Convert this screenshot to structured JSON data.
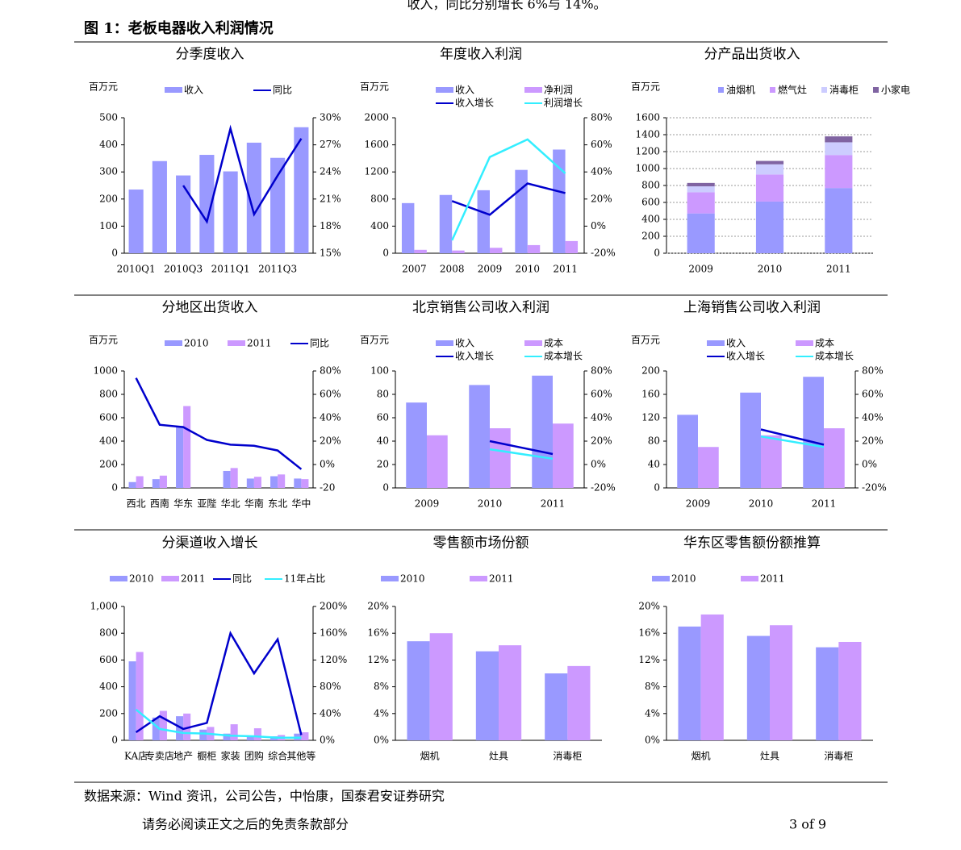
{
  "header_text": "收入，同比分别增长 6%与 14%。",
  "figure_title": "图 1：老板电器收入利润情况",
  "source": "数据来源：Wind 资讯，公司公告，中怡康，国泰君安证券研究",
  "footer_left": "请务必阅读正文之后的免责条款部分",
  "page_number": "3 of 9",
  "chart_data": [
    {
      "type": "combo",
      "title": "分季度收入",
      "y_label": "百万元",
      "categories": [
        "2010Q1",
        null,
        "2010Q3",
        null,
        "2011Q1",
        null,
        "2011Q3",
        null
      ],
      "series": [
        {
          "name": "收入",
          "type": "bar",
          "color": "#9999ff",
          "values": [
            235,
            340,
            287,
            363,
            302,
            408,
            352,
            465
          ]
        },
        {
          "name": "同比",
          "type": "line",
          "axis": "y2",
          "color": "#0000cc",
          "values": [
            null,
            null,
            22.5,
            18.5,
            28.8,
            19.3,
            23.6,
            27.7
          ]
        }
      ],
      "ylim": [
        0,
        500
      ],
      "yticks": [
        0,
        100,
        200,
        300,
        400,
        500
      ],
      "y2lim": [
        15,
        30
      ],
      "y2ticks": [
        {
          "value": 15,
          "label": "15%"
        },
        {
          "value": 18,
          "label": "18%"
        },
        {
          "value": 21,
          "label": "21%"
        },
        {
          "value": 24,
          "label": "24%"
        },
        {
          "value": 27,
          "label": "27%"
        },
        {
          "value": 30,
          "label": "30%"
        }
      ]
    },
    {
      "type": "combo",
      "title": "年度收入利润",
      "y_label": "百万元",
      "categories": [
        "2007",
        "2008",
        "2009",
        "2010",
        "2011"
      ],
      "series": [
        {
          "name": "收入",
          "type": "bar",
          "color": "#9999ff",
          "values": [
            740,
            860,
            930,
            1230,
            1530
          ]
        },
        {
          "name": "净利润",
          "type": "bar",
          "color": "#cc99ff",
          "values": [
            50,
            40,
            80,
            120,
            180
          ]
        },
        {
          "name": "收入增长",
          "type": "line",
          "axis": "y2",
          "color": "#0000cc",
          "values": [
            null,
            18.5,
            8.4,
            31.5,
            24.4
          ]
        },
        {
          "name": "利润增长",
          "type": "line",
          "axis": "y2",
          "color": "#33eeff",
          "values": [
            null,
            -10.5,
            51,
            64,
            39
          ]
        }
      ],
      "ylim": [
        0,
        2000
      ],
      "yticks": [
        0,
        400,
        800,
        1200,
        1600,
        2000
      ],
      "y2lim": [
        -20,
        80
      ],
      "y2ticks": [
        {
          "value": -20,
          "label": "-20%"
        },
        {
          "value": 0,
          "label": "0%"
        },
        {
          "value": 20,
          "label": "20%"
        },
        {
          "value": 40,
          "label": "40%"
        },
        {
          "value": 60,
          "label": "60%"
        },
        {
          "value": 80,
          "label": "80%"
        }
      ]
    },
    {
      "type": "stacked_bar",
      "title": "分产品出货收入",
      "y_label": "百万元",
      "grid": true,
      "categories": [
        "2009",
        "2010",
        "2011"
      ],
      "series": [
        {
          "name": "油烟机",
          "color": "#9999ff",
          "values": [
            470,
            610,
            770
          ]
        },
        {
          "name": "燃气灶",
          "color": "#cc99ff",
          "values": [
            250,
            320,
            390
          ]
        },
        {
          "name": "消毒柜",
          "color": "#ccccff",
          "values": [
            70,
            120,
            150
          ]
        },
        {
          "name": "小家电",
          "color": "#8064a2",
          "values": [
            40,
            40,
            70
          ]
        }
      ],
      "ylim": [
        0,
        1600
      ],
      "yticks": [
        0,
        200,
        400,
        600,
        800,
        1000,
        1200,
        1400,
        1600
      ]
    },
    {
      "type": "combo",
      "title": "分地区出货收入",
      "y_label": "百万元",
      "categories": [
        "西北",
        "西南",
        "华东",
        "亚陛",
        "华北",
        "华南",
        "东北",
        "华中"
      ],
      "series": [
        {
          "name": "2010",
          "type": "bar",
          "color": "#9999ff",
          "values": [
            50,
            75,
            530,
            null,
            145,
            80,
            100,
            80
          ]
        },
        {
          "name": "2011",
          "type": "bar",
          "color": "#cc99ff",
          "values": [
            100,
            105,
            700,
            null,
            170,
            95,
            115,
            75
          ]
        },
        {
          "name": "同比",
          "type": "line",
          "axis": "y2",
          "color": "#0000cc",
          "values": [
            74,
            34,
            32,
            21,
            17,
            16,
            12,
            -4
          ]
        }
      ],
      "ylim": [
        0,
        1000
      ],
      "yticks": [
        0,
        200,
        400,
        600,
        800,
        1000
      ],
      "y2lim": [
        -20,
        80
      ],
      "y2ticks": [
        {
          "value": -20,
          "label": "-20"
        },
        {
          "value": 0,
          "label": "0%"
        },
        {
          "value": 20,
          "label": "20%"
        },
        {
          "value": 40,
          "label": "40%"
        },
        {
          "value": 60,
          "label": "60%"
        },
        {
          "value": 80,
          "label": "80%"
        }
      ]
    },
    {
      "type": "combo",
      "title": "北京销售公司收入利润",
      "y_label": "百万元",
      "categories": [
        "2009",
        "2010",
        "2011"
      ],
      "series": [
        {
          "name": "收入",
          "type": "bar",
          "color": "#9999ff",
          "values": [
            73,
            88,
            96
          ]
        },
        {
          "name": "成本",
          "type": "bar",
          "color": "#cc99ff",
          "values": [
            45,
            51,
            55
          ]
        },
        {
          "name": "收入增长",
          "type": "line",
          "axis": "y2",
          "color": "#0000cc",
          "values": [
            null,
            20,
            9
          ]
        },
        {
          "name": "成本增长",
          "type": "line",
          "axis": "y2",
          "color": "#33eeff",
          "values": [
            null,
            13,
            5
          ]
        }
      ],
      "ylim": [
        0,
        100
      ],
      "yticks": [
        0,
        20,
        40,
        60,
        80,
        100
      ],
      "y2lim": [
        -20,
        80
      ],
      "y2ticks": [
        {
          "value": -20,
          "label": "-20%"
        },
        {
          "value": 0,
          "label": "0%"
        },
        {
          "value": 20,
          "label": "20%"
        },
        {
          "value": 40,
          "label": "40%"
        },
        {
          "value": 60,
          "label": "60%"
        },
        {
          "value": 80,
          "label": "80%"
        }
      ]
    },
    {
      "type": "combo",
      "title": "上海销售公司收入利润",
      "y_label": "百万元",
      "categories": [
        "2009",
        "2010",
        "2011"
      ],
      "series": [
        {
          "name": "收入",
          "type": "bar",
          "color": "#9999ff",
          "values": [
            125,
            163,
            190
          ]
        },
        {
          "name": "成本",
          "type": "bar",
          "color": "#cc99ff",
          "values": [
            70,
            90,
            102
          ]
        },
        {
          "name": "收入增长",
          "type": "line",
          "axis": "y2",
          "color": "#0000cc",
          "values": [
            null,
            30,
            17
          ]
        },
        {
          "name": "成本增长",
          "type": "line",
          "axis": "y2",
          "color": "#33eeff",
          "values": [
            null,
            24,
            15
          ]
        }
      ],
      "ylim": [
        0,
        200
      ],
      "yticks": [
        0,
        40,
        80,
        120,
        160,
        200
      ],
      "y2lim": [
        -20,
        80
      ],
      "y2ticks": [
        {
          "value": -20,
          "label": "-20%"
        },
        {
          "value": 0,
          "label": "0%"
        },
        {
          "value": 20,
          "label": "20%"
        },
        {
          "value": 40,
          "label": "40%"
        },
        {
          "value": 60,
          "label": "60%"
        },
        {
          "value": 80,
          "label": "80%"
        }
      ]
    },
    {
      "type": "combo",
      "title": "分渠道收入增长",
      "categories": [
        "KA店",
        "专卖店",
        "地产",
        "橱柜",
        "家装",
        "团购",
        "综合",
        "其他等"
      ],
      "series": [
        {
          "name": "2010",
          "type": "bar",
          "color": "#9999ff",
          "values": [
            590,
            170,
            180,
            80,
            50,
            35,
            30,
            50
          ]
        },
        {
          "name": "2011",
          "type": "bar",
          "color": "#cc99ff",
          "values": [
            660,
            220,
            200,
            100,
            120,
            90,
            40,
            60
          ]
        },
        {
          "name": "同比",
          "type": "line",
          "axis": "y2",
          "color": "#0000cc",
          "values": [
            12,
            36,
            17,
            26,
            160,
            100,
            151,
            8
          ]
        },
        {
          "name": "11年占比",
          "type": "line",
          "axis": "y2",
          "color": "#33eeff",
          "values": [
            46,
            17,
            11,
            10,
            7,
            6,
            4,
            4
          ]
        }
      ],
      "ylim": [
        0,
        1000
      ],
      "yticks": [
        0,
        200,
        400,
        600,
        800,
        {
          "value": 1000,
          "label": "1,000"
        }
      ],
      "y2lim": [
        0,
        200
      ],
      "y2ticks": [
        {
          "value": 0,
          "label": "0%"
        },
        {
          "value": 40,
          "label": "40%"
        },
        {
          "value": 80,
          "label": "80%"
        },
        {
          "value": 120,
          "label": "120%"
        },
        {
          "value": 160,
          "label": "160%"
        },
        {
          "value": 200,
          "label": "200%"
        }
      ]
    },
    {
      "type": "bar",
      "title": "零售额市场份额",
      "categories": [
        "烟机",
        "灶具",
        "消毒柜"
      ],
      "series": [
        {
          "name": "2010",
          "color": "#9999ff",
          "values": [
            14.8,
            13.3,
            10
          ]
        },
        {
          "name": "2011",
          "color": "#cc99ff",
          "values": [
            16,
            14.2,
            11.1
          ]
        }
      ],
      "ylim": [
        0,
        20
      ],
      "yticks": [
        {
          "value": 0,
          "label": "0%"
        },
        {
          "value": 4,
          "label": "4%"
        },
        {
          "value": 8,
          "label": "8%"
        },
        {
          "value": 12,
          "label": "12%"
        },
        {
          "value": 16,
          "label": "16%"
        },
        {
          "value": 20,
          "label": "20%"
        }
      ]
    },
    {
      "type": "bar",
      "title": "华东区零售额份额推算",
      "categories": [
        "烟机",
        "灶具",
        "消毒柜"
      ],
      "series": [
        {
          "name": "2010",
          "color": "#9999ff",
          "values": [
            17,
            15.6,
            13.9
          ]
        },
        {
          "name": "2011",
          "color": "#cc99ff",
          "values": [
            18.8,
            17.2,
            14.7
          ]
        }
      ],
      "ylim": [
        0,
        20
      ],
      "yticks": [
        {
          "value": 0,
          "label": "0%"
        },
        {
          "value": 4,
          "label": "4%"
        },
        {
          "value": 8,
          "label": "8%"
        },
        {
          "value": 12,
          "label": "12%"
        },
        {
          "value": 16,
          "label": "16%"
        },
        {
          "value": 20,
          "label": "20%"
        }
      ]
    }
  ]
}
